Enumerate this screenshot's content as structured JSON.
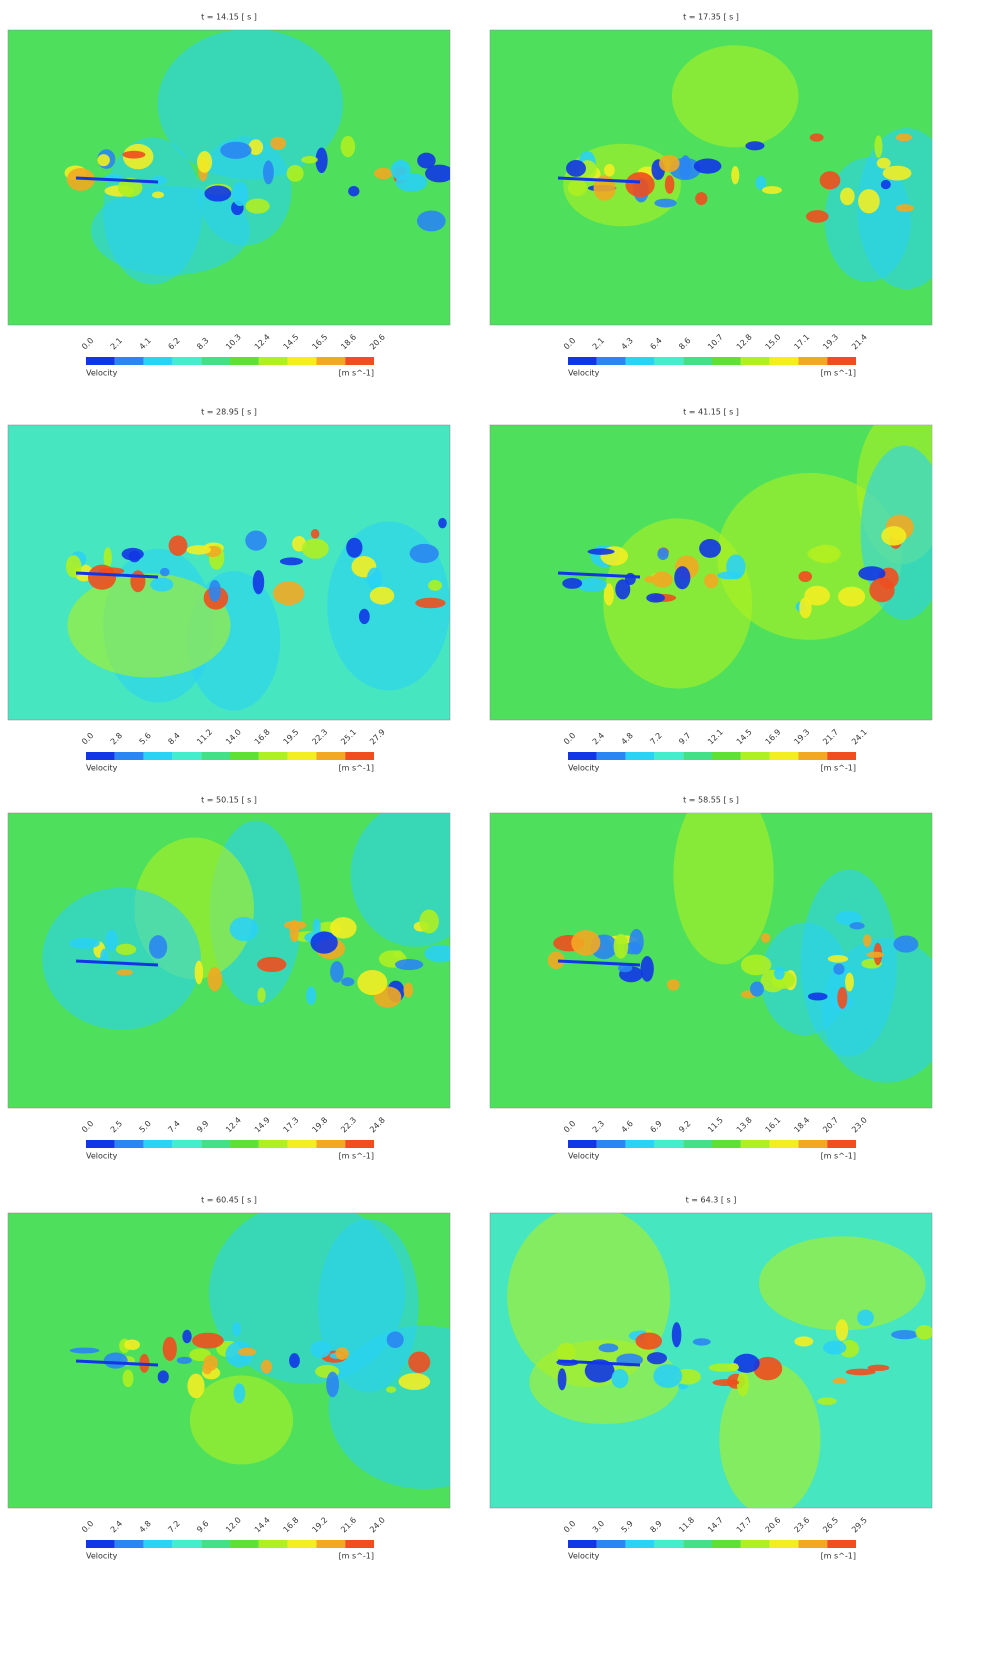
{
  "panels": [
    {
      "title": "t = 14.15 [ s ]",
      "background": "#4ee05c",
      "legend": {
        "ticks": [
          "0.0",
          "2.1",
          "4.1",
          "6.2",
          "8.3",
          "10.3",
          "12.4",
          "14.5",
          "16.5",
          "18.6",
          "20.6"
        ],
        "label": "Velocity",
        "unit": "[m s^-1]"
      }
    },
    {
      "title": "t = 17.35 [ s ]",
      "background": "#4ee05c",
      "legend": {
        "ticks": [
          "0.0",
          "2.1",
          "4.3",
          "6.4",
          "8.6",
          "10.7",
          "12.8",
          "15.0",
          "17.1",
          "19.3",
          "21.4"
        ],
        "label": "Velocity",
        "unit": "[m s^-1]"
      }
    },
    {
      "title": "t = 28.95 [ s ]",
      "background": "#46e6c0",
      "legend": {
        "ticks": [
          "0.0",
          "2.8",
          "5.6",
          "8.4",
          "11.2",
          "14.0",
          "16.8",
          "19.5",
          "22.3",
          "25.1",
          "27.9"
        ],
        "label": "Velocity",
        "unit": "[m s^-1]"
      }
    },
    {
      "title": "t = 41.15 [ s ]",
      "background": "#4ee05c",
      "legend": {
        "ticks": [
          "0.0",
          "2.4",
          "4.8",
          "7.2",
          "9.7",
          "12.1",
          "14.5",
          "16.9",
          "19.3",
          "21.7",
          "24.1"
        ],
        "label": "Velocity",
        "unit": "[m s^-1]"
      }
    },
    {
      "title": "t = 50.15 [ s ]",
      "background": "#4ee05c",
      "legend": {
        "ticks": [
          "0.0",
          "2.5",
          "5.0",
          "7.4",
          "9.9",
          "12.4",
          "14.9",
          "17.3",
          "19.8",
          "22.3",
          "24.8"
        ],
        "label": "Velocity",
        "unit": "[m s^-1]"
      }
    },
    {
      "title": "t = 58.55 [ s ]",
      "background": "#4ee05c",
      "legend": {
        "ticks": [
          "0.0",
          "2.3",
          "4.6",
          "6.9",
          "9.2",
          "11.5",
          "13.8",
          "16.1",
          "18.4",
          "20.7",
          "23.0"
        ],
        "label": "Velocity",
        "unit": "[m s^-1]"
      }
    },
    {
      "title": "t = 60.45 [ s ]",
      "background": "#4ee05c",
      "legend": {
        "ticks": [
          "0.0",
          "2.4",
          "4.8",
          "7.2",
          "9.6",
          "12.0",
          "14.4",
          "16.8",
          "19.2",
          "21.6",
          "24.0"
        ],
        "label": "Velocity",
        "unit": "[m s^-1]"
      }
    },
    {
      "title": "t = 64.3 [ s ]",
      "background": "#46e6c0",
      "legend": {
        "ticks": [
          "0.0",
          "3.0",
          "5.9",
          "8.9",
          "11.8",
          "14.7",
          "17.7",
          "20.6",
          "23.6",
          "26.5",
          "29.5"
        ],
        "label": "Velocity",
        "unit": "[m s^-1]"
      }
    }
  ]
}
